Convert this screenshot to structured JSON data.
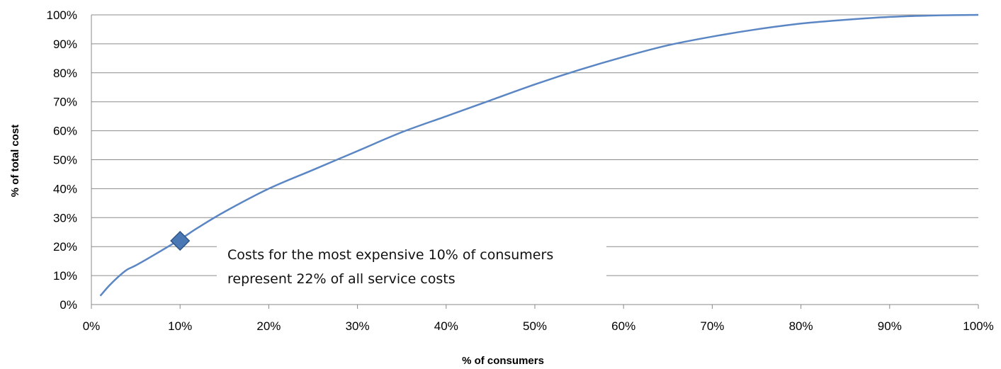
{
  "chart_data": {
    "type": "line",
    "xlabel": "% of consumers",
    "ylabel": "% of total cost",
    "xlim": [
      0,
      100
    ],
    "ylim": [
      0,
      100
    ],
    "x_ticks": [
      "0%",
      "10%",
      "20%",
      "30%",
      "40%",
      "50%",
      "60%",
      "70%",
      "80%",
      "90%",
      "100%"
    ],
    "y_ticks": [
      "0%",
      "10%",
      "20%",
      "30%",
      "40%",
      "50%",
      "60%",
      "70%",
      "80%",
      "90%",
      "100%"
    ],
    "grid": "horizontal",
    "series": [
      {
        "color": "#5b86c4",
        "points": [
          [
            1,
            3
          ],
          [
            2,
            6.5
          ],
          [
            3,
            9.5
          ],
          [
            4,
            12
          ],
          [
            5,
            13.5
          ],
          [
            7,
            17
          ],
          [
            10,
            22.5
          ],
          [
            12,
            26.5
          ],
          [
            15,
            32
          ],
          [
            20,
            40
          ],
          [
            25,
            46.5
          ],
          [
            30,
            53
          ],
          [
            35,
            59.5
          ],
          [
            40,
            65
          ],
          [
            45,
            70.5
          ],
          [
            50,
            76
          ],
          [
            55,
            81
          ],
          [
            60,
            85.5
          ],
          [
            65,
            89.5
          ],
          [
            70,
            92.5
          ],
          [
            75,
            95
          ],
          [
            80,
            97
          ],
          [
            85,
            98.3
          ],
          [
            90,
            99.3
          ],
          [
            95,
            99.8
          ],
          [
            100,
            100
          ]
        ]
      }
    ],
    "marker": {
      "x": 10,
      "y": 22,
      "shape": "diamond",
      "color": "#4a78b5"
    },
    "annotation": {
      "lines": [
        "Costs for the most expensive 10% of consumers",
        "represent 22% of all service costs"
      ]
    }
  }
}
